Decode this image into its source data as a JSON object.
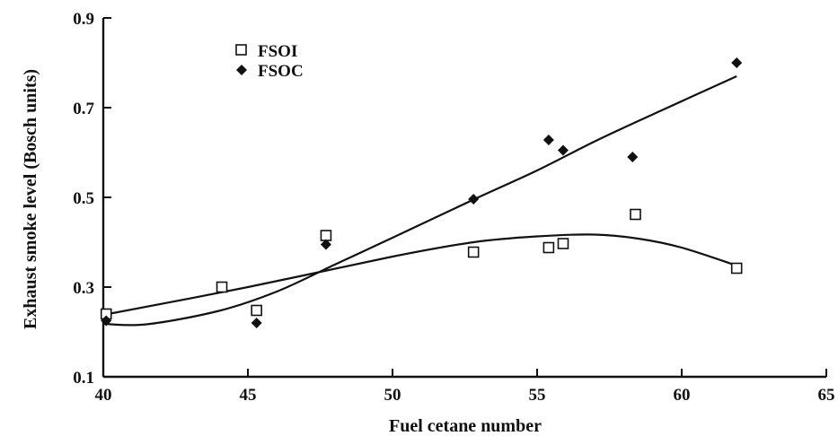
{
  "chart_data": {
    "type": "scatter",
    "title": "",
    "xlabel": "Fuel cetane number",
    "ylabel": "Exhaust smoke level (Bosch units)",
    "xlim": [
      40,
      65
    ],
    "ylim": [
      0.1,
      0.9
    ],
    "x_ticks": [
      "40",
      "45",
      "50",
      "55",
      "60",
      "65"
    ],
    "y_ticks": [
      "0.1",
      "0.3",
      "0.5",
      "0.7",
      "0.9"
    ],
    "legend_position": "top-left",
    "grid": false,
    "series": [
      {
        "name": "FSOI",
        "marker": "open-square",
        "color": "#111111",
        "points": [
          {
            "x": 40.1,
            "y": 0.24
          },
          {
            "x": 44.1,
            "y": 0.3
          },
          {
            "x": 45.3,
            "y": 0.248
          },
          {
            "x": 47.7,
            "y": 0.415
          },
          {
            "x": 52.8,
            "y": 0.378
          },
          {
            "x": 55.4,
            "y": 0.388
          },
          {
            "x": 55.9,
            "y": 0.397
          },
          {
            "x": 58.4,
            "y": 0.462
          },
          {
            "x": 61.9,
            "y": 0.342
          }
        ],
        "trend": [
          {
            "x": 40.0,
            "y": 0.238
          },
          {
            "x": 45.0,
            "y": 0.3
          },
          {
            "x": 50.0,
            "y": 0.368
          },
          {
            "x": 52.8,
            "y": 0.4
          },
          {
            "x": 55.0,
            "y": 0.413
          },
          {
            "x": 57.0,
            "y": 0.417
          },
          {
            "x": 58.5,
            "y": 0.408
          },
          {
            "x": 60.0,
            "y": 0.388
          },
          {
            "x": 61.9,
            "y": 0.348
          }
        ]
      },
      {
        "name": "FSOC",
        "marker": "filled-diamond",
        "color": "#111111",
        "points": [
          {
            "x": 40.1,
            "y": 0.225
          },
          {
            "x": 45.3,
            "y": 0.22
          },
          {
            "x": 47.7,
            "y": 0.395
          },
          {
            "x": 52.8,
            "y": 0.496
          },
          {
            "x": 55.4,
            "y": 0.628
          },
          {
            "x": 55.9,
            "y": 0.605
          },
          {
            "x": 58.3,
            "y": 0.59
          },
          {
            "x": 61.9,
            "y": 0.8
          }
        ],
        "trend": [
          {
            "x": 40.0,
            "y": 0.218
          },
          {
            "x": 41.5,
            "y": 0.217
          },
          {
            "x": 44.0,
            "y": 0.247
          },
          {
            "x": 46.0,
            "y": 0.29
          },
          {
            "x": 48.0,
            "y": 0.35
          },
          {
            "x": 50.0,
            "y": 0.41
          },
          {
            "x": 52.8,
            "y": 0.495
          },
          {
            "x": 55.0,
            "y": 0.56
          },
          {
            "x": 57.0,
            "y": 0.625
          },
          {
            "x": 59.0,
            "y": 0.685
          },
          {
            "x": 61.9,
            "y": 0.77
          }
        ]
      }
    ]
  }
}
